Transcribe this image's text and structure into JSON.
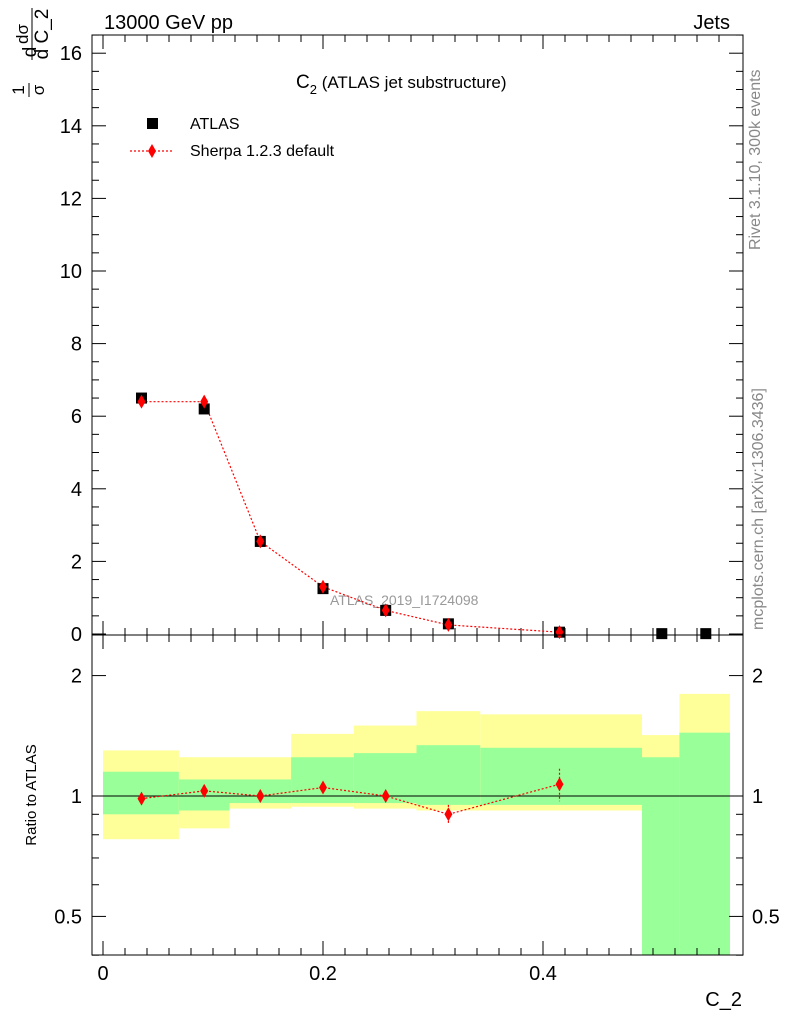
{
  "header": {
    "left": "13000 GeV pp",
    "right": "Jets"
  },
  "side_labels": {
    "rivet": "Rivet 3.1.10,  300k events",
    "source": "mcplots.cern.ch [arXiv:1306.3436]"
  },
  "watermark": "ATLAS_2019_I1724098",
  "colors": {
    "data_marker": "#000000",
    "mc_line": "#ff0000",
    "band_inner": "#99ff99",
    "band_outer": "#ffff99"
  },
  "chart_data": [
    {
      "type": "scatter",
      "title_main": "C",
      "title_sub": "2",
      "title_rest": " (ATLAS jet substructure)",
      "ylabel": {
        "frac1_num": "1",
        "frac1_den": "σ",
        "frac2_num": "dσ",
        "frac2_den": "d C_2",
        "prefix": "d"
      },
      "xlim": [
        0,
        0.5625
      ],
      "ylim": [
        0,
        16.5
      ],
      "ytick_labels": [
        "0",
        "2",
        "4",
        "6",
        "8",
        "10",
        "12",
        "14",
        "16"
      ],
      "series": [
        {
          "name": "ATLAS",
          "marker": "square",
          "x": [
            0.035,
            0.092,
            0.143,
            0.2,
            0.257,
            0.314,
            0.415,
            0.508,
            0.548
          ],
          "y": [
            6.5,
            6.2,
            2.55,
            1.25,
            0.65,
            0.28,
            0.05,
            0.01,
            0.01
          ]
        },
        {
          "name": "Sherpa 1.2.3 default",
          "marker": "diamond",
          "x": [
            0.035,
            0.092,
            0.143,
            0.2,
            0.257,
            0.314,
            0.415
          ],
          "y": [
            6.4,
            6.4,
            2.55,
            1.3,
            0.65,
            0.25,
            0.05
          ]
        }
      ]
    },
    {
      "type": "line",
      "ylabel": "Ratio to ATLAS",
      "xlabel": "C_2",
      "xlim": [
        0,
        0.5625
      ],
      "ylim": [
        0.3,
        2.3
      ],
      "log_y": true,
      "xtick_labels": [
        {
          "value": 0,
          "label": "0"
        },
        {
          "value": 0.2,
          "label": "0.2"
        },
        {
          "value": 0.4,
          "label": "0.4"
        }
      ],
      "ytick_labels": [
        {
          "value": 0.5,
          "label": "0.5"
        },
        {
          "value": 1,
          "label": "1"
        },
        {
          "value": 2,
          "label": "2"
        }
      ],
      "bands": [
        {
          "x0": 0.0,
          "x1": 0.069,
          "outer": [
            0.78,
            1.3
          ],
          "inner": [
            0.9,
            1.15
          ]
        },
        {
          "x0": 0.069,
          "x1": 0.115,
          "outer": [
            0.83,
            1.25
          ],
          "inner": [
            0.92,
            1.1
          ]
        },
        {
          "x0": 0.115,
          "x1": 0.171,
          "outer": [
            0.93,
            1.25
          ],
          "inner": [
            0.96,
            1.1
          ]
        },
        {
          "x0": 0.171,
          "x1": 0.228,
          "outer": [
            0.94,
            1.43
          ],
          "inner": [
            0.96,
            1.25
          ]
        },
        {
          "x0": 0.228,
          "x1": 0.285,
          "outer": [
            0.93,
            1.5
          ],
          "inner": [
            0.96,
            1.28
          ]
        },
        {
          "x0": 0.285,
          "x1": 0.343,
          "outer": [
            0.92,
            1.63
          ],
          "inner": [
            0.95,
            1.34
          ]
        },
        {
          "x0": 0.343,
          "x1": 0.49,
          "outer": [
            0.92,
            1.6
          ],
          "inner": [
            0.95,
            1.32
          ]
        },
        {
          "x0": 0.49,
          "x1": 0.524,
          "outer": [
            0.3,
            1.42
          ],
          "inner": [
            0.3,
            1.25
          ]
        },
        {
          "x0": 0.524,
          "x1": 0.57,
          "outer": [
            0.3,
            1.8
          ],
          "inner": [
            0.3,
            1.44
          ]
        }
      ],
      "series": [
        {
          "name": "Sherpa 1.2.3 default",
          "x": [
            0.035,
            0.092,
            0.143,
            0.2,
            0.257,
            0.314,
            0.415
          ],
          "y": [
            0.985,
            1.03,
            1.0,
            1.05,
            1.0,
            0.9,
            1.07
          ],
          "yerr": [
            0.01,
            0.01,
            0.01,
            0.015,
            0.02,
            0.05,
            0.1
          ]
        }
      ]
    }
  ]
}
